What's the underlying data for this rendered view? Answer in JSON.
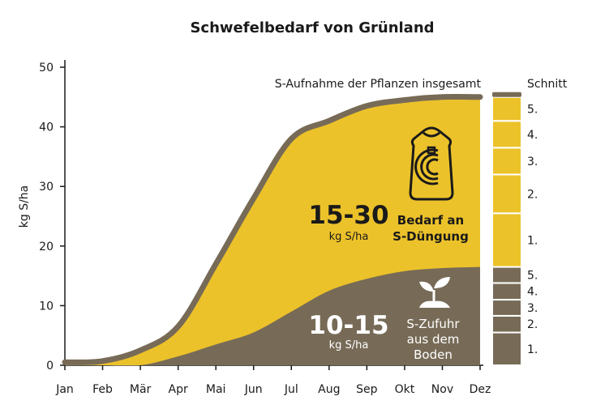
{
  "chart_data": {
    "type": "area",
    "title": "Schwefelbedarf von Grünland",
    "ylabel": "kg S/ha",
    "xlabel": "",
    "ylim": [
      0,
      50
    ],
    "yticks": [
      0,
      10,
      20,
      30,
      40,
      50
    ],
    "categories": [
      "Jan",
      "Feb",
      "Mär",
      "Apr",
      "Mai",
      "Jun",
      "Jul",
      "Aug",
      "Sep",
      "Okt",
      "Nov",
      "Dez"
    ],
    "series": [
      {
        "name": "S-Aufnahme der Pflanzen insgesamt",
        "color": "#776b57",
        "values": [
          0.5,
          0.7,
          2.5,
          6.5,
          17,
          28,
          38,
          41,
          43.5,
          44.5,
          45,
          45
        ]
      },
      {
        "name": "S-Zufuhr aus dem Boden",
        "color": "#776b57",
        "values": [
          0,
          0,
          0,
          1.5,
          3.5,
          5.5,
          9,
          12.5,
          14.5,
          15.8,
          16.3,
          16.5
        ]
      }
    ],
    "fill_colors": {
      "duengung": "#ecc22a",
      "boden": "#776b57",
      "outline": "#776b57"
    },
    "annotations": {
      "top_curve_label": "S-Aufnahme der Pflanzen insgesamt",
      "duengung": {
        "value": "15-30",
        "unit": "kg S/ha",
        "line1": "Bedarf an",
        "line2": "S-Düngung"
      },
      "boden": {
        "value": "10-15",
        "unit": "kg S/ha",
        "line1": "S-Zufuhr",
        "line2": "aus dem",
        "line3": "Boden"
      }
    },
    "schnitt": {
      "header": "Schnitt",
      "yellow_breaks": [
        16.5,
        25.5,
        32,
        36.5,
        41,
        45
      ],
      "brown_breaks": [
        0,
        5.5,
        8.3,
        11,
        13.8,
        16.5
      ],
      "yellow_labels": [
        "1.",
        "2.",
        "3.",
        "4.",
        "5."
      ],
      "brown_labels": [
        "1.",
        "2.",
        "3.",
        "4.",
        "5."
      ]
    }
  }
}
